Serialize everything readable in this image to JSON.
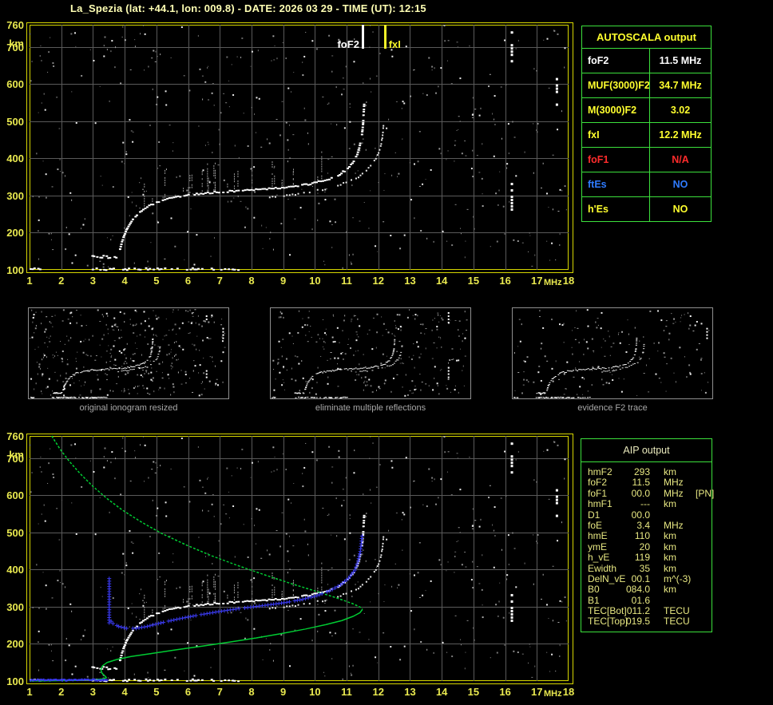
{
  "title": "La_Spezia (lat: +44.1, lon: 009.8) - DATE: 2026 03 29 - TIME (UT): 12:15",
  "palette": {
    "background": "#000000",
    "title_text": "#ffffb4",
    "axis_text": "#e9e94f",
    "plot_border": "#d6d600",
    "grid": "#5a5a5a",
    "echo_trace": "#ffffff",
    "noise": "#8c8c8c",
    "profile_green": "#00cc33",
    "scaled_trace_blue": "#3b3bf0",
    "table_border_green": "#3ce03c",
    "value_white": "#ffffff",
    "value_yellow": "#ffff2e",
    "value_red": "#ff2c2c",
    "value_blue": "#2f7bff",
    "caption_gray": "#a8a8a8"
  },
  "autoscala": {
    "title": "AUTOSCALA output",
    "rows": [
      {
        "label": "foF2",
        "value": "11.5 MHz",
        "color": "#ffffff"
      },
      {
        "label": "MUF(3000)F2",
        "value": "34.7 MHz",
        "color": "#ffff2e"
      },
      {
        "label": "M(3000)F2",
        "value": "3.02",
        "color": "#ffff2e"
      },
      {
        "label": "fxI",
        "value": "12.2 MHz",
        "color": "#ffff2e"
      },
      {
        "label": "foF1",
        "value": "N/A",
        "color": "#ff2c2c"
      },
      {
        "label": "ftEs",
        "value": "NO",
        "color": "#2f7bff"
      },
      {
        "label": "h'Es",
        "value": "NO",
        "color": "#ffff2e"
      }
    ]
  },
  "aip": {
    "title": "AIP output",
    "rows": [
      {
        "label": "hmF2",
        "value": "293",
        "unit": "km",
        "extra": ""
      },
      {
        "label": "foF2",
        "value": "11.5",
        "unit": "MHz",
        "extra": ""
      },
      {
        "label": "foF1",
        "value": "00.0",
        "unit": "MHz",
        "extra": "[PN]"
      },
      {
        "label": "hmF1",
        "value": "---",
        "unit": "km",
        "extra": ""
      },
      {
        "label": "D1",
        "value": "00.0",
        "unit": "",
        "extra": ""
      },
      {
        "label": "foE",
        "value": "3.4",
        "unit": "MHz",
        "extra": ""
      },
      {
        "label": "hmE",
        "value": "110",
        "unit": "km",
        "extra": ""
      },
      {
        "label": "ymE",
        "value": "20",
        "unit": "km",
        "extra": ""
      },
      {
        "label": "h_vE",
        "value": "119",
        "unit": "km",
        "extra": ""
      },
      {
        "label": "Ewidth",
        "value": "35",
        "unit": "km",
        "extra": ""
      },
      {
        "label": "DelN_vE",
        "value": "00.1",
        "unit": "m^(-3)",
        "extra": ""
      },
      {
        "label": "B0",
        "value": "084.0",
        "unit": "km",
        "extra": ""
      },
      {
        "label": "B1",
        "value": "01.6",
        "unit": "",
        "extra": ""
      },
      {
        "label": "TEC[Bot]",
        "value": "011.2",
        "unit": "TECU",
        "extra": ""
      },
      {
        "label": "TEC[Top]",
        "value": "019.5",
        "unit": "TECU",
        "extra": ""
      }
    ]
  },
  "thumbnails": [
    {
      "caption": "original ionogram resized"
    },
    {
      "caption": "eliminate multiple reflections"
    },
    {
      "caption": "evidence F2 trace"
    }
  ],
  "chart_data": {
    "type": "scatter",
    "axes": {
      "x_unit": "MHz",
      "y_unit": "km",
      "x_ticks": [
        1,
        2,
        3,
        4,
        5,
        6,
        7,
        8,
        9,
        10,
        11,
        12,
        13,
        14,
        15,
        16,
        17,
        18
      ],
      "y_ticks": [
        760,
        700,
        600,
        500,
        400,
        300,
        200,
        100
      ],
      "xlim": [
        1,
        18
      ],
      "ylim": [
        100,
        760
      ],
      "grid": true
    },
    "markers": [
      {
        "name": "foF2",
        "f_mhz": 11.5,
        "label": "foF2",
        "color": "#ffffff"
      },
      {
        "name": "fxI",
        "f_mhz": 12.2,
        "label": "fxI",
        "color": "#f0f028"
      }
    ],
    "o_trace_fh": [
      [
        3.82,
        160
      ],
      [
        3.88,
        178
      ],
      [
        3.95,
        196
      ],
      [
        4.05,
        214
      ],
      [
        4.18,
        232
      ],
      [
        4.35,
        250
      ],
      [
        4.55,
        265
      ],
      [
        4.8,
        278
      ],
      [
        5.1,
        288
      ],
      [
        5.45,
        296
      ],
      [
        5.85,
        302
      ],
      [
        6.3,
        307
      ],
      [
        6.8,
        311
      ],
      [
        7.35,
        314
      ],
      [
        7.9,
        317
      ],
      [
        8.45,
        320
      ],
      [
        9.0,
        324
      ],
      [
        9.5,
        329
      ],
      [
        9.95,
        336
      ],
      [
        10.35,
        345
      ],
      [
        10.7,
        357
      ],
      [
        10.95,
        372
      ],
      [
        11.15,
        390
      ],
      [
        11.3,
        412
      ],
      [
        11.38,
        436
      ],
      [
        11.44,
        462
      ],
      [
        11.48,
        492
      ],
      [
        11.5,
        524
      ],
      [
        11.52,
        552
      ]
    ],
    "x_trace_fh": [
      [
        8.55,
        298
      ],
      [
        9.0,
        302
      ],
      [
        9.45,
        307
      ],
      [
        9.9,
        313
      ],
      [
        10.3,
        320
      ],
      [
        10.7,
        329
      ],
      [
        11.05,
        340
      ],
      [
        11.35,
        353
      ],
      [
        11.6,
        369
      ],
      [
        11.8,
        388
      ],
      [
        11.95,
        410
      ],
      [
        12.05,
        434
      ],
      [
        12.1,
        458
      ],
      [
        12.13,
        482
      ],
      [
        12.15,
        505
      ]
    ],
    "rfi_streaks_fhh": [
      [
        16.2,
        665,
        745
      ],
      [
        17.62,
        548,
        623
      ],
      [
        16.2,
        257,
        345
      ]
    ],
    "bottom_band_f_ranges": [
      [
        1.0,
        1.35
      ],
      [
        2.9,
        5.25
      ],
      [
        5.45,
        7.6
      ]
    ],
    "es_segment": {
      "h_km": 137,
      "f_range": [
        2.95,
        3.72
      ]
    },
    "green_profile_fh": {
      "topside": [
        [
          1.7,
          760
        ],
        [
          1.95,
          726
        ],
        [
          2.25,
          692
        ],
        [
          2.6,
          658
        ],
        [
          3.0,
          624
        ],
        [
          3.45,
          591
        ],
        [
          3.95,
          559
        ],
        [
          4.55,
          527
        ],
        [
          5.2,
          496
        ],
        [
          5.95,
          466
        ],
        [
          6.75,
          437
        ],
        [
          7.6,
          410
        ],
        [
          8.45,
          385
        ],
        [
          9.3,
          361
        ],
        [
          10.1,
          340
        ],
        [
          10.75,
          322
        ],
        [
          11.2,
          308
        ],
        [
          11.45,
          298
        ],
        [
          11.5,
          293
        ]
      ],
      "bottomside": [
        [
          11.5,
          293
        ],
        [
          11.42,
          284
        ],
        [
          11.2,
          274
        ],
        [
          10.85,
          263
        ],
        [
          10.35,
          252
        ],
        [
          9.7,
          240
        ],
        [
          8.95,
          228
        ],
        [
          8.15,
          216
        ],
        [
          7.3,
          205
        ],
        [
          6.45,
          194
        ],
        [
          5.6,
          184
        ],
        [
          4.85,
          174
        ],
        [
          4.2,
          166
        ],
        [
          3.75,
          158
        ],
        [
          3.45,
          150
        ],
        [
          3.3,
          141
        ],
        [
          3.25,
          131
        ],
        [
          3.28,
          122
        ],
        [
          3.33,
          117
        ]
      ],
      "e_region": [
        [
          3.33,
          117
        ],
        [
          3.4,
          112
        ],
        [
          3.42,
          109
        ],
        [
          3.3,
          106
        ],
        [
          3.1,
          104
        ],
        [
          2.8,
          102.5
        ],
        [
          2.4,
          101.5
        ],
        [
          1.9,
          101
        ],
        [
          1.4,
          100.6
        ],
        [
          1.0,
          100.4
        ]
      ]
    },
    "blue_trace_fh": {
      "bottom_line": {
        "h_km": 105,
        "f_range": [
          1.0,
          3.45
        ]
      },
      "leading_edge": {
        "f_mhz": 3.5,
        "h_range": [
          258,
          378
        ]
      },
      "curve": [
        [
          3.5,
          268
        ],
        [
          3.62,
          256
        ],
        [
          3.8,
          248
        ],
        [
          4.05,
          243
        ],
        [
          4.35,
          243
        ],
        [
          4.7,
          248
        ],
        [
          5.05,
          256
        ],
        [
          5.45,
          264
        ],
        [
          5.9,
          272
        ],
        [
          6.4,
          280
        ],
        [
          6.95,
          288
        ],
        [
          7.5,
          295
        ],
        [
          8.05,
          301
        ],
        [
          8.6,
          307
        ],
        [
          9.1,
          313
        ],
        [
          9.6,
          321
        ],
        [
          10.05,
          331
        ],
        [
          10.45,
          344
        ],
        [
          10.8,
          360
        ],
        [
          11.05,
          378
        ],
        [
          11.25,
          400
        ],
        [
          11.35,
          424
        ],
        [
          11.42,
          450
        ],
        [
          11.46,
          478
        ],
        [
          11.49,
          505
        ]
      ]
    }
  }
}
